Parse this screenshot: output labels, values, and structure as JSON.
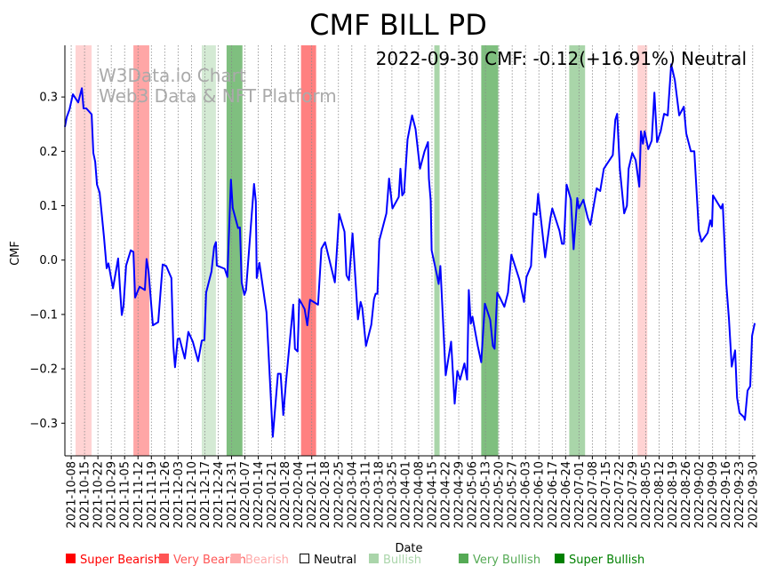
{
  "chart_data": {
    "type": "line",
    "title": "CMF BILL PD",
    "xlabel": "Date",
    "ylabel": "CMF",
    "x_unit": "days since 2021-10-08",
    "xlim": [
      -3.3,
      358.5
    ],
    "ylim": [
      -0.36,
      0.395
    ],
    "grid": "vertical dotted at x ticks",
    "annotation": "2022-09-30 CMF: -0.12(+16.91%) Neutral",
    "watermark": [
      "W3Data.io Chart",
      "Web3 Data & NFT Platform"
    ],
    "yticks": [
      -0.3,
      -0.2,
      -0.1,
      0.0,
      0.1,
      0.2,
      0.3
    ],
    "ytick_labels": [
      "−0.3",
      "−0.2",
      "−0.1",
      "0.0",
      "0.1",
      "0.2",
      "0.3"
    ],
    "xtick_labels": [
      "2021-10-08",
      "2021-10-15",
      "2021-10-22",
      "2021-10-29",
      "2021-11-05",
      "2021-11-12",
      "2021-11-19",
      "2021-11-26",
      "2021-12-03",
      "2021-12-10",
      "2021-12-17",
      "2021-12-24",
      "2021-12-31",
      "2022-01-07",
      "2022-01-14",
      "2022-01-21",
      "2022-01-28",
      "2022-02-04",
      "2022-02-11",
      "2022-02-18",
      "2022-02-25",
      "2022-03-04",
      "2022-03-11",
      "2022-03-18",
      "2022-03-25",
      "2022-04-01",
      "2022-04-08",
      "2022-04-15",
      "2022-04-22",
      "2022-04-29",
      "2022-05-06",
      "2022-05-13",
      "2022-05-20",
      "2022-05-27",
      "2022-06-03",
      "2022-06-10",
      "2022-06-17",
      "2022-06-24",
      "2022-07-01",
      "2022-07-08",
      "2022-07-15",
      "2022-07-22",
      "2022-07-29",
      "2022-08-05",
      "2022-08-12",
      "2022-08-19",
      "2022-08-26",
      "2022-09-02",
      "2022-09-09",
      "2022-09-16",
      "2022-09-23",
      "2022-09-30"
    ],
    "xtick_step_days": 7,
    "series": [
      {
        "name": "CMF",
        "color": "#0000ff",
        "points": [
          [
            -3.3,
            0.245
          ],
          [
            -2.3,
            0.263
          ],
          [
            -0.9,
            0.277
          ],
          [
            0.9,
            0.305
          ],
          [
            3.7,
            0.29
          ],
          [
            5.6,
            0.316
          ],
          [
            6.5,
            0.279
          ],
          [
            7.9,
            0.279
          ],
          [
            10.7,
            0.268
          ],
          [
            11.6,
            0.197
          ],
          [
            12.6,
            0.181
          ],
          [
            13.5,
            0.139
          ],
          [
            14.9,
            0.124
          ],
          [
            17.2,
            0.042
          ],
          [
            18.6,
            -0.015
          ],
          [
            19.5,
            -0.006
          ],
          [
            21.9,
            -0.052
          ],
          [
            24.6,
            0.003
          ],
          [
            25.6,
            -0.055
          ],
          [
            26.5,
            -0.101
          ],
          [
            27.4,
            -0.085
          ],
          [
            28.8,
            -0.01
          ],
          [
            31.2,
            0.018
          ],
          [
            32.6,
            0.015
          ],
          [
            33.5,
            -0.069
          ],
          [
            35.8,
            -0.049
          ],
          [
            38.6,
            -0.055
          ],
          [
            39.5,
            0.002
          ],
          [
            40.5,
            -0.02
          ],
          [
            42.8,
            -0.12
          ],
          [
            45.6,
            -0.114
          ],
          [
            47.9,
            -0.008
          ],
          [
            49.8,
            -0.011
          ],
          [
            52.5,
            -0.033
          ],
          [
            53.5,
            -0.158
          ],
          [
            54.4,
            -0.197
          ],
          [
            55.8,
            -0.145
          ],
          [
            56.7,
            -0.144
          ],
          [
            59.5,
            -0.181
          ],
          [
            61.4,
            -0.132
          ],
          [
            63.7,
            -0.15
          ],
          [
            66.5,
            -0.186
          ],
          [
            68.4,
            -0.148
          ],
          [
            69.8,
            -0.147
          ],
          [
            70.7,
            -0.06
          ],
          [
            73.5,
            -0.021
          ],
          [
            74.9,
            0.024
          ],
          [
            75.8,
            0.033
          ],
          [
            76.3,
            -0.01
          ],
          [
            80.4,
            -0.016
          ],
          [
            81.8,
            -0.031
          ],
          [
            83.7,
            0.148
          ],
          [
            84.6,
            0.096
          ],
          [
            87.4,
            0.059
          ],
          [
            88.4,
            0.06
          ],
          [
            89.3,
            -0.041
          ],
          [
            90.7,
            -0.064
          ],
          [
            91.6,
            -0.055
          ],
          [
            95.8,
            0.14
          ],
          [
            96.7,
            0.108
          ],
          [
            97.2,
            -0.033
          ],
          [
            98.6,
            -0.005
          ],
          [
            102.3,
            -0.096
          ],
          [
            105.6,
            -0.325
          ],
          [
            108.3,
            -0.209
          ],
          [
            109.7,
            -0.209
          ],
          [
            111.1,
            -0.285
          ],
          [
            112.5,
            -0.225
          ],
          [
            116.3,
            -0.082
          ],
          [
            117.2,
            -0.163
          ],
          [
            118.6,
            -0.168
          ],
          [
            119.5,
            -0.072
          ],
          [
            122.3,
            -0.09
          ],
          [
            123.7,
            -0.12
          ],
          [
            125.1,
            -0.073
          ],
          [
            129.3,
            -0.082
          ],
          [
            131.1,
            0.021
          ],
          [
            133,
            0.033
          ],
          [
            138.1,
            -0.041
          ],
          [
            140.4,
            0.085
          ],
          [
            143.2,
            0.052
          ],
          [
            144.2,
            -0.028
          ],
          [
            145.5,
            -0.037
          ],
          [
            147.4,
            0.049
          ],
          [
            150.2,
            -0.109
          ],
          [
            151.6,
            -0.077
          ],
          [
            152.5,
            -0.088
          ],
          [
            154.4,
            -0.158
          ],
          [
            157.2,
            -0.119
          ],
          [
            158.6,
            -0.072
          ],
          [
            159.5,
            -0.062
          ],
          [
            160.4,
            -0.062
          ],
          [
            161.4,
            0.036
          ],
          [
            165.1,
            0.086
          ],
          [
            166.5,
            0.15
          ],
          [
            168.3,
            0.095
          ],
          [
            171.6,
            0.116
          ],
          [
            172.5,
            0.168
          ],
          [
            173.4,
            0.119
          ],
          [
            174.4,
            0.124
          ],
          [
            176.2,
            0.222
          ],
          [
            178.6,
            0.266
          ],
          [
            180.4,
            0.241
          ],
          [
            181.8,
            0.197
          ],
          [
            182.7,
            0.168
          ],
          [
            185.1,
            0.2
          ],
          [
            186.9,
            0.217
          ],
          [
            187.4,
            0.15
          ],
          [
            188.3,
            0.11
          ],
          [
            188.8,
            0.018
          ],
          [
            191.6,
            -0.028
          ],
          [
            192.5,
            -0.044
          ],
          [
            193.4,
            -0.011
          ],
          [
            196.2,
            -0.212
          ],
          [
            199,
            -0.15
          ],
          [
            200.9,
            -0.264
          ],
          [
            202.3,
            -0.204
          ],
          [
            203.7,
            -0.22
          ],
          [
            206,
            -0.19
          ],
          [
            207.4,
            -0.22
          ],
          [
            208.3,
            -0.055
          ],
          [
            209.3,
            -0.117
          ],
          [
            210.2,
            -0.104
          ],
          [
            213,
            -0.158
          ],
          [
            214.8,
            -0.188
          ],
          [
            216.7,
            -0.08
          ],
          [
            219.5,
            -0.11
          ],
          [
            220.9,
            -0.158
          ],
          [
            221.8,
            -0.163
          ],
          [
            223.2,
            -0.06
          ],
          [
            224.6,
            -0.069
          ],
          [
            226.9,
            -0.086
          ],
          [
            228.8,
            -0.06
          ],
          [
            230.6,
            0.01
          ],
          [
            234.8,
            -0.036
          ],
          [
            237.2,
            -0.077
          ],
          [
            238.5,
            -0.031
          ],
          [
            240.9,
            -0.011
          ],
          [
            242.3,
            0.086
          ],
          [
            243.7,
            0.083
          ],
          [
            244.6,
            0.122
          ],
          [
            248.3,
            0.005
          ],
          [
            251.1,
            0.078
          ],
          [
            252,
            0.095
          ],
          [
            255.8,
            0.054
          ],
          [
            257.1,
            0.03
          ],
          [
            258.1,
            0.03
          ],
          [
            259.5,
            0.139
          ],
          [
            261.8,
            0.111
          ],
          [
            263.2,
            0.02
          ],
          [
            265.1,
            0.114
          ],
          [
            266,
            0.095
          ],
          [
            268.3,
            0.111
          ],
          [
            270.6,
            0.078
          ],
          [
            272,
            0.065
          ],
          [
            275.3,
            0.132
          ],
          [
            277.1,
            0.127
          ],
          [
            279,
            0.168
          ],
          [
            283.7,
            0.193
          ],
          [
            285,
            0.258
          ],
          [
            286,
            0.269
          ],
          [
            287.4,
            0.168
          ],
          [
            289.7,
            0.086
          ],
          [
            291.1,
            0.1
          ],
          [
            292,
            0.168
          ],
          [
            293.9,
            0.197
          ],
          [
            295.7,
            0.184
          ],
          [
            297.6,
            0.135
          ],
          [
            298.5,
            0.237
          ],
          [
            299.5,
            0.214
          ],
          [
            300.4,
            0.237
          ],
          [
            302.3,
            0.204
          ],
          [
            304.1,
            0.22
          ],
          [
            305.5,
            0.308
          ],
          [
            306.9,
            0.217
          ],
          [
            308.8,
            0.237
          ],
          [
            310.6,
            0.269
          ],
          [
            312.5,
            0.266
          ],
          [
            314.3,
            0.36
          ],
          [
            316.2,
            0.331
          ],
          [
            318.5,
            0.266
          ],
          [
            320.9,
            0.282
          ],
          [
            322.2,
            0.233
          ],
          [
            324.6,
            0.2
          ],
          [
            326.4,
            0.2
          ],
          [
            328.8,
            0.054
          ],
          [
            330.2,
            0.034
          ],
          [
            333.4,
            0.05
          ],
          [
            334.8,
            0.073
          ],
          [
            335.7,
            0.062
          ],
          [
            336.2,
            0.119
          ],
          [
            337.6,
            0.111
          ],
          [
            340.4,
            0.095
          ],
          [
            341.3,
            0.103
          ],
          [
            343.2,
            -0.044
          ],
          [
            344.6,
            -0.109
          ],
          [
            346,
            -0.196
          ],
          [
            347.8,
            -0.166
          ],
          [
            348.8,
            -0.253
          ],
          [
            350.1,
            -0.281
          ],
          [
            352.5,
            -0.289
          ],
          [
            352.9,
            -0.294
          ],
          [
            354.3,
            -0.24
          ],
          [
            355.7,
            -0.232
          ],
          [
            356.7,
            -0.139
          ],
          [
            358.1,
            -0.116
          ]
        ]
      }
    ],
    "bands": [
      {
        "start": 2.3,
        "end": 10.7,
        "signal": "Bearish",
        "color": "#ffd3d3"
      },
      {
        "start": 32.6,
        "end": 40.9,
        "signal": "Very Bearish",
        "color": "#ffa6a6"
      },
      {
        "start": 68.4,
        "end": 75.8,
        "signal": "Bullish",
        "color": "#d4ead4"
      },
      {
        "start": 81.4,
        "end": 89.7,
        "signal": "Very Bullish",
        "color": "#7fbf7f"
      },
      {
        "start": 120.4,
        "end": 128.3,
        "signal": "Super Bearish",
        "color": "#ff8080"
      },
      {
        "start": 190.2,
        "end": 193.0,
        "signal": "Bullish",
        "color": "#a9d5a9"
      },
      {
        "start": 214.8,
        "end": 223.7,
        "signal": "Very Bullish",
        "color": "#7fbf7f"
      },
      {
        "start": 260.9,
        "end": 269.2,
        "signal": "Bullish",
        "color": "#a9d5a9"
      },
      {
        "start": 296.7,
        "end": 301.8,
        "signal": "Bearish",
        "color": "#ffd3d3"
      }
    ],
    "legend": {
      "placement": "bottom",
      "items": [
        {
          "label": "Super Bearish",
          "color": "#ff0000",
          "text_color": "#ff0000",
          "filled": true
        },
        {
          "label": "Very Bearish",
          "color": "#ff5555",
          "text_color": "#ff5555",
          "filled": true
        },
        {
          "label": "Bearish",
          "color": "#ffaaaa",
          "text_color": "#ffaaaa",
          "filled": true
        },
        {
          "label": "Neutral",
          "color": "#000000",
          "text_color": "#000000",
          "filled": false
        },
        {
          "label": "Bullish",
          "color": "#aad5aa",
          "text_color": "#aad5aa",
          "filled": true
        },
        {
          "label": "Very Bullish",
          "color": "#55aa55",
          "text_color": "#55aa55",
          "filled": true
        },
        {
          "label": "Super Bullish",
          "color": "#008000",
          "text_color": "#008000",
          "filled": true
        }
      ]
    }
  }
}
